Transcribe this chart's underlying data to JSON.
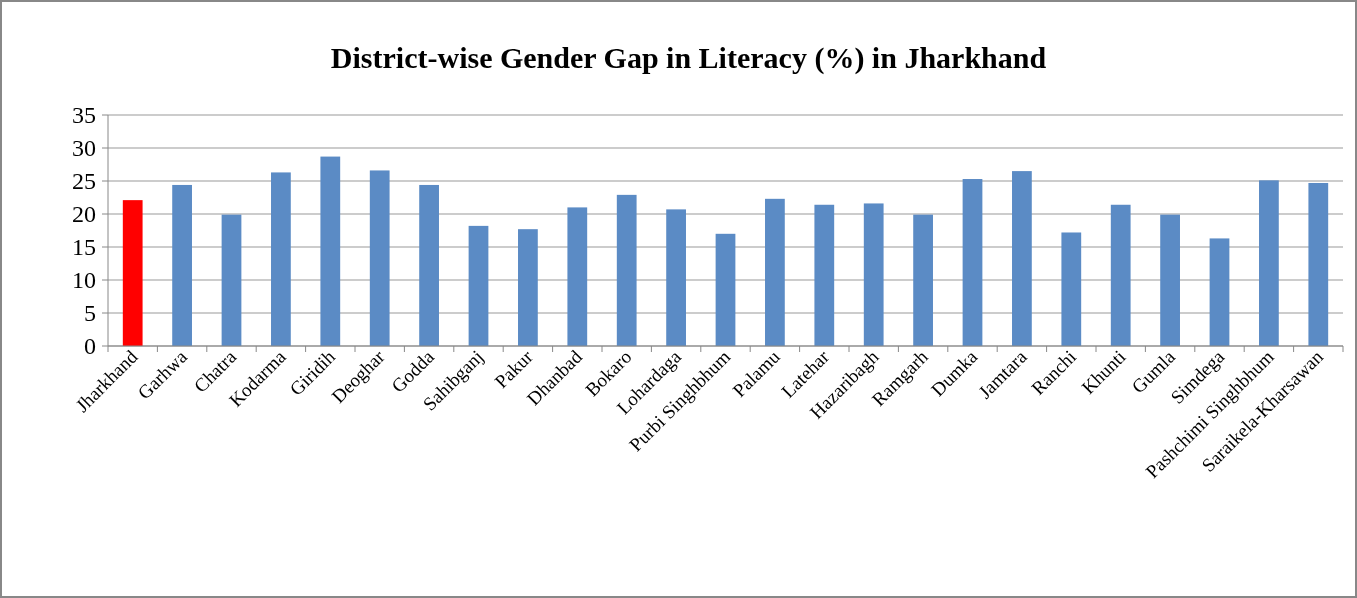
{
  "chart_data": {
    "type": "bar",
    "title": "District-wise Gender Gap in Literacy (%) in Jharkhand",
    "categories": [
      "Jharkhand",
      "Garhwa",
      "Chatra",
      "Kodarma",
      "Giridih",
      "Deoghar",
      "Godda",
      "Sahibganj",
      "Pakur",
      "Dhanbad",
      "Bokaro",
      "Lohardaga",
      "Purbi Singhbhum",
      "Palamu",
      "Latehar",
      "Hazaribagh",
      "Ramgarh",
      "Dumka",
      "Jamtara",
      "Ranchi",
      "Khunti",
      "Gumla",
      "Simdega",
      "Pashchimi Singhbhum",
      "Saraikela-Kharsawan"
    ],
    "values": [
      22.1,
      24.4,
      19.9,
      26.3,
      28.7,
      26.6,
      24.4,
      18.2,
      17.7,
      21.0,
      22.9,
      20.7,
      17.0,
      22.3,
      21.4,
      21.6,
      19.9,
      25.3,
      26.5,
      17.2,
      21.4,
      19.9,
      16.3,
      25.1,
      24.7
    ],
    "colors": [
      "#ff0000",
      "#5b8bc5",
      "#5b8bc5",
      "#5b8bc5",
      "#5b8bc5",
      "#5b8bc5",
      "#5b8bc5",
      "#5b8bc5",
      "#5b8bc5",
      "#5b8bc5",
      "#5b8bc5",
      "#5b8bc5",
      "#5b8bc5",
      "#5b8bc5",
      "#5b8bc5",
      "#5b8bc5",
      "#5b8bc5",
      "#5b8bc5",
      "#5b8bc5",
      "#5b8bc5",
      "#5b8bc5",
      "#5b8bc5",
      "#5b8bc5",
      "#5b8bc5",
      "#5b8bc5"
    ],
    "ylim": [
      0,
      35
    ],
    "yticks": [
      0,
      5,
      10,
      15,
      20,
      25,
      30,
      35
    ],
    "grid": "y"
  }
}
